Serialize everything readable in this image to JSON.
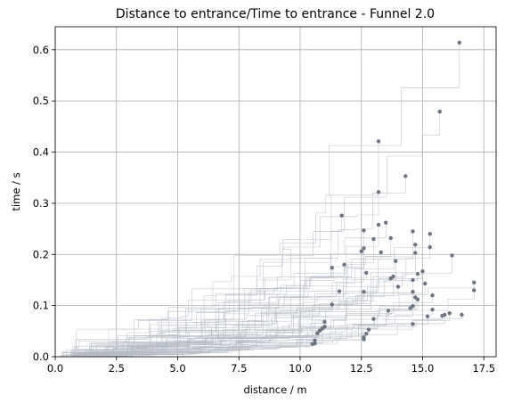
{
  "chart_data": {
    "type": "scatter",
    "title": "Distance to entrance/Time to entrance - Funnel 2.0",
    "xlabel": "distance / m",
    "ylabel": "time / s",
    "xlim": [
      0,
      18.0
    ],
    "ylim": [
      0,
      0.645
    ],
    "xticks": [
      "0.0",
      "2.5",
      "5.0",
      "7.5",
      "10.0",
      "12.5",
      "15.0",
      "17.5"
    ],
    "xtick_values": [
      0,
      2.5,
      5.0,
      7.5,
      10.0,
      12.5,
      15.0,
      17.5
    ],
    "yticks": [
      "0.0",
      "0.1",
      "0.2",
      "0.3",
      "0.4",
      "0.5",
      "0.6"
    ],
    "ytick_values": [
      0,
      0.1,
      0.2,
      0.3,
      0.4,
      0.5,
      0.6
    ],
    "grid": true,
    "trace_color": "#b4bac4",
    "point_color": "#6e7582",
    "endpoints": [
      [
        16.5,
        0.614
      ],
      [
        15.7,
        0.479
      ],
      [
        13.2,
        0.421
      ],
      [
        14.3,
        0.353
      ],
      [
        13.2,
        0.322
      ],
      [
        11.7,
        0.276
      ],
      [
        13.5,
        0.262
      ],
      [
        13.2,
        0.258
      ],
      [
        12.6,
        0.247
      ],
      [
        14.6,
        0.245
      ],
      [
        15.3,
        0.24
      ],
      [
        13.7,
        0.232
      ],
      [
        13.0,
        0.23
      ],
      [
        14.7,
        0.219
      ],
      [
        15.3,
        0.214
      ],
      [
        12.6,
        0.212
      ],
      [
        12.5,
        0.206
      ],
      [
        13.3,
        0.204
      ],
      [
        14.7,
        0.203
      ],
      [
        16.2,
        0.198
      ],
      [
        13.9,
        0.187
      ],
      [
        11.8,
        0.18
      ],
      [
        11.3,
        0.174
      ],
      [
        15.0,
        0.167
      ],
      [
        14.8,
        0.162
      ],
      [
        12.7,
        0.164
      ],
      [
        13.8,
        0.157
      ],
      [
        13.7,
        0.153
      ],
      [
        14.6,
        0.15
      ],
      [
        15.1,
        0.143
      ],
      [
        17.1,
        0.145
      ],
      [
        14.0,
        0.137
      ],
      [
        11.6,
        0.128
      ],
      [
        12.6,
        0.127
      ],
      [
        14.6,
        0.127
      ],
      [
        17.1,
        0.13
      ],
      [
        15.4,
        0.12
      ],
      [
        14.7,
        0.116
      ],
      [
        14.8,
        0.112
      ],
      [
        11.3,
        0.102
      ],
      [
        14.6,
        0.099
      ],
      [
        15.4,
        0.092
      ],
      [
        13.6,
        0.09
      ],
      [
        14.5,
        0.095
      ],
      [
        16.1,
        0.085
      ],
      [
        15.2,
        0.079
      ],
      [
        15.8,
        0.08
      ],
      [
        16.6,
        0.082
      ],
      [
        15.9,
        0.082
      ],
      [
        13.0,
        0.074
      ],
      [
        14.6,
        0.064
      ],
      [
        11.0,
        0.068
      ],
      [
        11.0,
        0.059
      ],
      [
        10.9,
        0.055
      ],
      [
        10.8,
        0.051
      ],
      [
        12.8,
        0.053
      ],
      [
        10.7,
        0.046
      ],
      [
        12.7,
        0.045
      ],
      [
        10.6,
        0.032
      ],
      [
        10.6,
        0.026
      ],
      [
        12.6,
        0.038
      ],
      [
        12.6,
        0.034
      ],
      [
        10.5,
        0.025
      ]
    ]
  }
}
